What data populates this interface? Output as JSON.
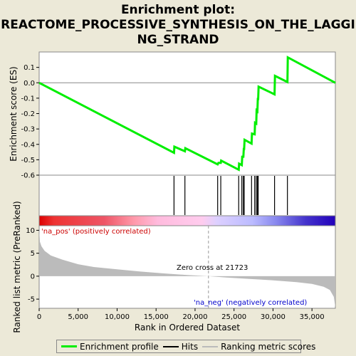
{
  "title_line1": "Enrichment plot:",
  "title_line2": "REACTOME_PROCESSIVE_SYNTHESIS_ON_THE_LAGGI",
  "title_line3": "NG_STRAND",
  "legend": {
    "enrichment": "Enrichment profile",
    "hits": "Hits",
    "ranking": "Ranking metric scores"
  },
  "colors": {
    "enrichment": "#00ee00",
    "hits": "#000000",
    "ranking": "#bbbbbb",
    "pos_label": "#cc0000",
    "neg_label": "#0000cc"
  },
  "chart_data": {
    "type": "line",
    "xlabel": "Rank in Ordered Dataset",
    "ylabel_top": "Enrichment score (ES)",
    "ylabel_bottom": "Ranked list metric (PreRanked)",
    "x_range": [
      0,
      38000
    ],
    "x_ticks": [
      0,
      5000,
      10000,
      15000,
      20000,
      25000,
      30000,
      35000
    ],
    "x_tick_labels": [
      "0",
      "5,000",
      "10,000",
      "15,000",
      "20,000",
      "25,000",
      "30,000",
      "35,000"
    ],
    "es_range": [
      -0.6,
      0.2
    ],
    "es_ticks": [
      0.1,
      0.0,
      -0.1,
      -0.2,
      -0.3,
      -0.4,
      -0.5,
      -0.6
    ],
    "es_tick_labels": [
      "0.1",
      "0.0",
      "-0.1",
      "-0.2",
      "-0.3",
      "-0.4",
      "-0.5",
      "-0.6"
    ],
    "metric_range": [
      -7,
      11
    ],
    "metric_ticks": [
      10,
      5,
      0,
      -5
    ],
    "metric_tick_labels": [
      "10",
      "5",
      "0",
      "-5"
    ],
    "total_genes": 38100,
    "enrichment_profile": [
      [
        0,
        0.0
      ],
      [
        17300,
        -0.455
      ],
      [
        17350,
        -0.415
      ],
      [
        18700,
        -0.445
      ],
      [
        18750,
        -0.425
      ],
      [
        22900,
        -0.53
      ],
      [
        23000,
        -0.52
      ],
      [
        23300,
        -0.52
      ],
      [
        23350,
        -0.505
      ],
      [
        25600,
        -0.565
      ],
      [
        25650,
        -0.525
      ],
      [
        26000,
        -0.535
      ],
      [
        26050,
        -0.48
      ],
      [
        26200,
        -0.48
      ],
      [
        26250,
        -0.43
      ],
      [
        26300,
        -0.43
      ],
      [
        26350,
        -0.37
      ],
      [
        27250,
        -0.395
      ],
      [
        27300,
        -0.33
      ],
      [
        27650,
        -0.335
      ],
      [
        27700,
        -0.26
      ],
      [
        27850,
        -0.265
      ],
      [
        27900,
        -0.18
      ],
      [
        28000,
        -0.185
      ],
      [
        28050,
        -0.105
      ],
      [
        28100,
        -0.105
      ],
      [
        28150,
        -0.025
      ],
      [
        30200,
        -0.075
      ],
      [
        30250,
        0.045
      ],
      [
        31850,
        0.005
      ],
      [
        31900,
        0.165
      ],
      [
        38000,
        0.0
      ]
    ],
    "hits": [
      17300,
      18700,
      22900,
      23300,
      25600,
      26000,
      26200,
      26300,
      27250,
      27650,
      27850,
      28000,
      28100,
      30200,
      31850
    ],
    "metric_curve": [
      [
        0,
        10.2
      ],
      [
        100,
        7.5
      ],
      [
        300,
        6.5
      ],
      [
        700,
        5.5
      ],
      [
        1500,
        4.5
      ],
      [
        3000,
        3.6
      ],
      [
        5000,
        2.6
      ],
      [
        7000,
        2.0
      ],
      [
        10000,
        1.5
      ],
      [
        13000,
        1.0
      ],
      [
        16000,
        0.6
      ],
      [
        19000,
        0.25
      ],
      [
        21723,
        0.0
      ],
      [
        24000,
        -0.3
      ],
      [
        27000,
        -0.6
      ],
      [
        30000,
        -0.9
      ],
      [
        33000,
        -1.3
      ],
      [
        35000,
        -1.7
      ],
      [
        36500,
        -2.3
      ],
      [
        37300,
        -3.0
      ],
      [
        37800,
        -4.5
      ],
      [
        38000,
        -6.8
      ]
    ],
    "zero_cross": 21723,
    "zero_cross_label": "Zero cross at 21723",
    "pos_label": "'na_pos' (positively correlated)",
    "neg_label": "'na_neg' (negatively correlated)",
    "heatmap_gradient": [
      [
        0.0,
        "#dd0000"
      ],
      [
        0.05,
        "#ee3333"
      ],
      [
        0.22,
        "#ee5566"
      ],
      [
        0.32,
        "#ff99aa"
      ],
      [
        0.4,
        "#ffbbdd"
      ],
      [
        0.55,
        "#ffccee"
      ],
      [
        0.6,
        "#ddd0ff"
      ],
      [
        0.72,
        "#bbbbff"
      ],
      [
        0.8,
        "#8888ee"
      ],
      [
        0.9,
        "#4433cc"
      ],
      [
        1.0,
        "#2200bb"
      ]
    ]
  }
}
